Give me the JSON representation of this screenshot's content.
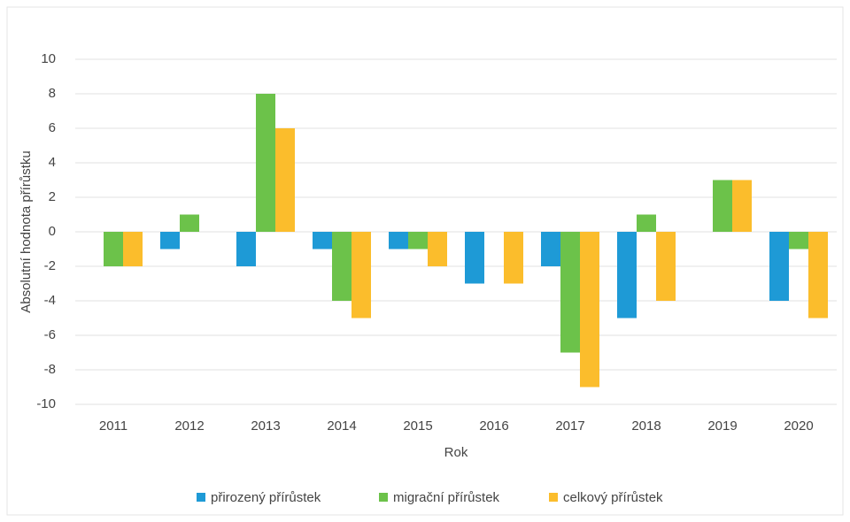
{
  "chart_data": {
    "type": "bar",
    "categories": [
      "2011",
      "2012",
      "2013",
      "2014",
      "2015",
      "2016",
      "2017",
      "2018",
      "2019",
      "2020"
    ],
    "series": [
      {
        "name": "přirozený přírůstek",
        "color": "#1e9ad6",
        "values": [
          0,
          -1,
          -2,
          -1,
          -1,
          -3,
          -2,
          -5,
          0,
          -4
        ]
      },
      {
        "name": "migrační přírůstek",
        "color": "#6cc24a",
        "values": [
          -2,
          1,
          8,
          -4,
          -1,
          0,
          -7,
          1,
          3,
          -1
        ]
      },
      {
        "name": "celkový přírůstek",
        "color": "#fbbd2c",
        "values": [
          -2,
          0,
          6,
          -5,
          -2,
          -3,
          -9,
          -4,
          3,
          -5
        ]
      }
    ],
    "ylim": [
      -10,
      10
    ],
    "yticks": [
      -10,
      -8,
      -6,
      -4,
      -2,
      0,
      2,
      4,
      6,
      8,
      10
    ],
    "xlabel": "Rok",
    "ylabel": "Absolutní hodnota přírůstku",
    "grid": true,
    "legend": "bottom"
  }
}
